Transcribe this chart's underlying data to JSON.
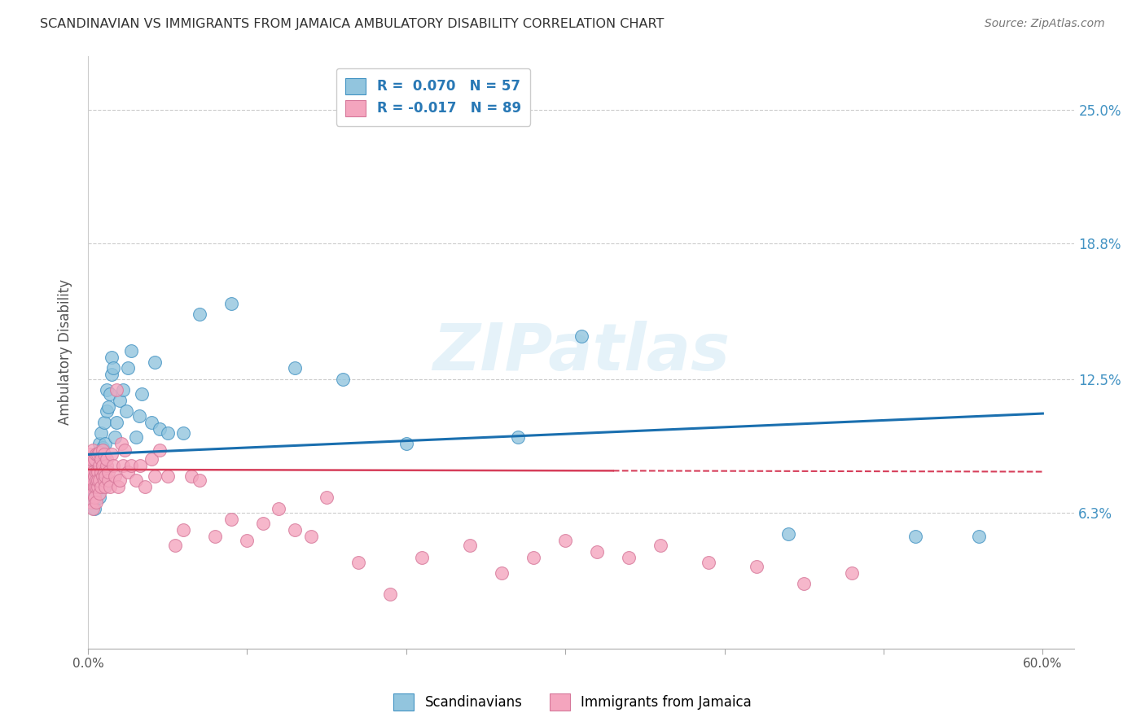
{
  "title": "SCANDINAVIAN VS IMMIGRANTS FROM JAMAICA AMBULATORY DISABILITY CORRELATION CHART",
  "source": "Source: ZipAtlas.com",
  "ylabel": "Ambulatory Disability",
  "xlabel_ticks": [
    "0.0%",
    "",
    "",
    "",
    "",
    "",
    "60.0%"
  ],
  "xlabel_vals": [
    0.0,
    0.1,
    0.2,
    0.3,
    0.4,
    0.5,
    0.6
  ],
  "ylabel_ticks": [
    "6.3%",
    "12.5%",
    "18.8%",
    "25.0%"
  ],
  "ylabel_vals": [
    0.063,
    0.125,
    0.188,
    0.25
  ],
  "xlim": [
    0.0,
    0.62
  ],
  "ylim": [
    0.0,
    0.275
  ],
  "legend_label1": "Scandinavians",
  "legend_label2": "Immigrants from Jamaica",
  "color_blue": "#92c5de",
  "color_pink": "#f4a5be",
  "edge_blue": "#4393c3",
  "edge_pink": "#d6789a",
  "line_blue": "#1a6faf",
  "line_pink": "#d63e5a",
  "background_color": "#ffffff",
  "watermark": "ZIPatlas",
  "scand_x": [
    0.001,
    0.002,
    0.002,
    0.003,
    0.003,
    0.003,
    0.004,
    0.004,
    0.004,
    0.005,
    0.005,
    0.005,
    0.006,
    0.006,
    0.007,
    0.007,
    0.007,
    0.008,
    0.008,
    0.009,
    0.009,
    0.01,
    0.01,
    0.01,
    0.011,
    0.012,
    0.012,
    0.013,
    0.014,
    0.015,
    0.015,
    0.016,
    0.017,
    0.018,
    0.02,
    0.022,
    0.024,
    0.025,
    0.027,
    0.03,
    0.032,
    0.034,
    0.04,
    0.042,
    0.045,
    0.05,
    0.06,
    0.07,
    0.09,
    0.13,
    0.16,
    0.2,
    0.27,
    0.31,
    0.44,
    0.52,
    0.56
  ],
  "scand_y": [
    0.072,
    0.08,
    0.068,
    0.075,
    0.082,
    0.078,
    0.071,
    0.085,
    0.065,
    0.079,
    0.073,
    0.088,
    0.076,
    0.091,
    0.07,
    0.082,
    0.095,
    0.085,
    0.1,
    0.078,
    0.093,
    0.088,
    0.075,
    0.105,
    0.095,
    0.11,
    0.12,
    0.112,
    0.118,
    0.127,
    0.135,
    0.13,
    0.098,
    0.105,
    0.115,
    0.12,
    0.11,
    0.13,
    0.138,
    0.098,
    0.108,
    0.118,
    0.105,
    0.133,
    0.102,
    0.1,
    0.1,
    0.155,
    0.16,
    0.13,
    0.125,
    0.095,
    0.098,
    0.145,
    0.053,
    0.052,
    0.052
  ],
  "jam_x": [
    0.001,
    0.001,
    0.001,
    0.002,
    0.002,
    0.002,
    0.002,
    0.003,
    0.003,
    0.003,
    0.003,
    0.003,
    0.004,
    0.004,
    0.004,
    0.004,
    0.005,
    0.005,
    0.005,
    0.005,
    0.005,
    0.006,
    0.006,
    0.006,
    0.006,
    0.007,
    0.007,
    0.007,
    0.007,
    0.008,
    0.008,
    0.008,
    0.009,
    0.009,
    0.009,
    0.01,
    0.01,
    0.01,
    0.011,
    0.011,
    0.012,
    0.012,
    0.013,
    0.013,
    0.014,
    0.015,
    0.016,
    0.017,
    0.018,
    0.019,
    0.02,
    0.021,
    0.022,
    0.023,
    0.025,
    0.027,
    0.03,
    0.033,
    0.036,
    0.04,
    0.042,
    0.045,
    0.05,
    0.055,
    0.06,
    0.065,
    0.07,
    0.08,
    0.09,
    0.1,
    0.11,
    0.12,
    0.13,
    0.14,
    0.15,
    0.17,
    0.19,
    0.21,
    0.24,
    0.26,
    0.28,
    0.3,
    0.32,
    0.34,
    0.36,
    0.39,
    0.42,
    0.45,
    0.48
  ],
  "jam_y": [
    0.082,
    0.078,
    0.09,
    0.075,
    0.085,
    0.088,
    0.068,
    0.082,
    0.072,
    0.078,
    0.092,
    0.065,
    0.08,
    0.075,
    0.088,
    0.07,
    0.075,
    0.082,
    0.09,
    0.078,
    0.068,
    0.082,
    0.075,
    0.09,
    0.078,
    0.072,
    0.085,
    0.091,
    0.078,
    0.082,
    0.088,
    0.075,
    0.08,
    0.085,
    0.092,
    0.078,
    0.082,
    0.09,
    0.075,
    0.08,
    0.085,
    0.088,
    0.078,
    0.082,
    0.075,
    0.09,
    0.085,
    0.08,
    0.12,
    0.075,
    0.078,
    0.095,
    0.085,
    0.092,
    0.082,
    0.085,
    0.078,
    0.085,
    0.075,
    0.088,
    0.08,
    0.092,
    0.08,
    0.048,
    0.055,
    0.08,
    0.078,
    0.052,
    0.06,
    0.05,
    0.058,
    0.065,
    0.055,
    0.052,
    0.07,
    0.04,
    0.025,
    0.042,
    0.048,
    0.035,
    0.042,
    0.05,
    0.045,
    0.042,
    0.048,
    0.04,
    0.038,
    0.03,
    0.035
  ]
}
